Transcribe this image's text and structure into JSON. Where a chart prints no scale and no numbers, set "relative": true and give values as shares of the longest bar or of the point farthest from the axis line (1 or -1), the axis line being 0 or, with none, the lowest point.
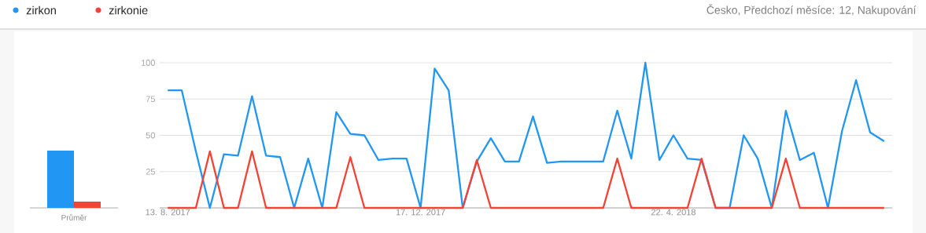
{
  "chart_data": [
    {
      "type": "bar",
      "relative": true,
      "categories": [
        "Průměr"
      ],
      "series": [
        {
          "color": "#2196f3",
          "values": [
            1
          ]
        },
        {
          "color": "#f44336",
          "values": [
            0.11
          ]
        }
      ]
    },
    {
      "type": "line",
      "subtitle": "Česko, Předchozí měsíce: 12, Nakupování",
      "legend": "top left",
      "grid": "y",
      "x": [
        "2017-08-13",
        "2017-08-20",
        "2017-08-27",
        "2017-09-03",
        "2017-09-10",
        "2017-09-17",
        "2017-09-24",
        "2017-10-01",
        "2017-10-08",
        "2017-10-15",
        "2017-10-22",
        "2017-10-29",
        "2017-11-05",
        "2017-11-12",
        "2017-11-19",
        "2017-11-26",
        "2017-12-03",
        "2017-12-10",
        "2017-12-17",
        "2017-12-24",
        "2017-12-31",
        "2018-01-07",
        "2018-01-14",
        "2018-01-21",
        "2018-01-28",
        "2018-02-04",
        "2018-02-11",
        "2018-02-18",
        "2018-02-25",
        "2018-03-04",
        "2018-03-11",
        "2018-03-18",
        "2018-03-25",
        "2018-04-01",
        "2018-04-08",
        "2018-04-15",
        "2018-04-22",
        "2018-04-29",
        "2018-05-06",
        "2018-05-13",
        "2018-05-20",
        "2018-05-27",
        "2018-06-03",
        "2018-06-10",
        "2018-06-17",
        "2018-06-24",
        "2018-07-01",
        "2018-07-08",
        "2018-07-15",
        "2018-07-22",
        "2018-07-29",
        "2018-08-05"
      ],
      "xlim": [
        "2017-08-09",
        "2018-08-09"
      ],
      "xticks": [
        {
          "value": "2017-08-13",
          "label": "13. 8. 2017"
        },
        {
          "value": "2017-12-17",
          "label": "17. 12. 2017"
        },
        {
          "value": "2018-04-22",
          "label": "22. 4. 2018"
        }
      ],
      "ylim": [
        0,
        100
      ],
      "yticks": [
        25,
        50,
        75,
        100
      ],
      "series": [
        {
          "name": "zirkon",
          "color": "#2196f3",
          "values": [
            81,
            81,
            39,
            0,
            37,
            36,
            77,
            36,
            35,
            0,
            34,
            0,
            66,
            51,
            50,
            33,
            34,
            34,
            0,
            96,
            81,
            0,
            32,
            48,
            32,
            32,
            63,
            31,
            32,
            32,
            32,
            32,
            67,
            34,
            100,
            33,
            50,
            34,
            33,
            0,
            0,
            50,
            34,
            0,
            67,
            33,
            38,
            0,
            53,
            88,
            52,
            46
          ]
        },
        {
          "name": "zirkonie",
          "color": "#f44336",
          "values": [
            0,
            0,
            0,
            39,
            0,
            0,
            39,
            0,
            0,
            0,
            0,
            0,
            0,
            35,
            0,
            0,
            0,
            0,
            0,
            0,
            0,
            0,
            33,
            0,
            0,
            0,
            0,
            0,
            0,
            0,
            0,
            0,
            34,
            0,
            0,
            0,
            0,
            0,
            34,
            0,
            0,
            0,
            0,
            0,
            34,
            0,
            0,
            0,
            0,
            0,
            0,
            0
          ]
        }
      ]
    }
  ]
}
